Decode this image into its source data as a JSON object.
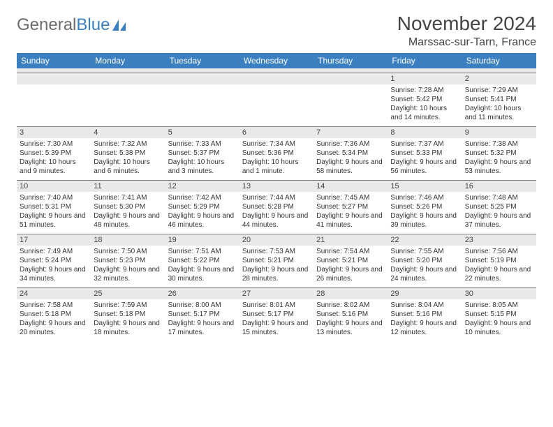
{
  "brand": {
    "part1": "General",
    "part2": "Blue"
  },
  "title": "November 2024",
  "location": "Marssac-sur-Tarn, France",
  "colors": {
    "header_bg": "#3a7fbf",
    "header_fg": "#ffffff",
    "num_bg": "#e9e9e9",
    "num_border": "#808080",
    "text": "#333333",
    "brand_gray": "#6b6b6b",
    "brand_blue": "#3a7fbf"
  },
  "fonts": {
    "title_pt": 28,
    "subtitle_pt": 16,
    "header_pt": 12,
    "daynum_pt": 11,
    "detail_pt": 10
  },
  "weekdays": [
    "Sunday",
    "Monday",
    "Tuesday",
    "Wednesday",
    "Thursday",
    "Friday",
    "Saturday"
  ],
  "weeks": [
    [
      null,
      null,
      null,
      null,
      null,
      {
        "n": "1",
        "sunrise": "7:28 AM",
        "sunset": "5:42 PM",
        "daylight": "10 hours and 14 minutes."
      },
      {
        "n": "2",
        "sunrise": "7:29 AM",
        "sunset": "5:41 PM",
        "daylight": "10 hours and 11 minutes."
      }
    ],
    [
      {
        "n": "3",
        "sunrise": "7:30 AM",
        "sunset": "5:39 PM",
        "daylight": "10 hours and 9 minutes."
      },
      {
        "n": "4",
        "sunrise": "7:32 AM",
        "sunset": "5:38 PM",
        "daylight": "10 hours and 6 minutes."
      },
      {
        "n": "5",
        "sunrise": "7:33 AM",
        "sunset": "5:37 PM",
        "daylight": "10 hours and 3 minutes."
      },
      {
        "n": "6",
        "sunrise": "7:34 AM",
        "sunset": "5:36 PM",
        "daylight": "10 hours and 1 minute."
      },
      {
        "n": "7",
        "sunrise": "7:36 AM",
        "sunset": "5:34 PM",
        "daylight": "9 hours and 58 minutes."
      },
      {
        "n": "8",
        "sunrise": "7:37 AM",
        "sunset": "5:33 PM",
        "daylight": "9 hours and 56 minutes."
      },
      {
        "n": "9",
        "sunrise": "7:38 AM",
        "sunset": "5:32 PM",
        "daylight": "9 hours and 53 minutes."
      }
    ],
    [
      {
        "n": "10",
        "sunrise": "7:40 AM",
        "sunset": "5:31 PM",
        "daylight": "9 hours and 51 minutes."
      },
      {
        "n": "11",
        "sunrise": "7:41 AM",
        "sunset": "5:30 PM",
        "daylight": "9 hours and 48 minutes."
      },
      {
        "n": "12",
        "sunrise": "7:42 AM",
        "sunset": "5:29 PM",
        "daylight": "9 hours and 46 minutes."
      },
      {
        "n": "13",
        "sunrise": "7:44 AM",
        "sunset": "5:28 PM",
        "daylight": "9 hours and 44 minutes."
      },
      {
        "n": "14",
        "sunrise": "7:45 AM",
        "sunset": "5:27 PM",
        "daylight": "9 hours and 41 minutes."
      },
      {
        "n": "15",
        "sunrise": "7:46 AM",
        "sunset": "5:26 PM",
        "daylight": "9 hours and 39 minutes."
      },
      {
        "n": "16",
        "sunrise": "7:48 AM",
        "sunset": "5:25 PM",
        "daylight": "9 hours and 37 minutes."
      }
    ],
    [
      {
        "n": "17",
        "sunrise": "7:49 AM",
        "sunset": "5:24 PM",
        "daylight": "9 hours and 34 minutes."
      },
      {
        "n": "18",
        "sunrise": "7:50 AM",
        "sunset": "5:23 PM",
        "daylight": "9 hours and 32 minutes."
      },
      {
        "n": "19",
        "sunrise": "7:51 AM",
        "sunset": "5:22 PM",
        "daylight": "9 hours and 30 minutes."
      },
      {
        "n": "20",
        "sunrise": "7:53 AM",
        "sunset": "5:21 PM",
        "daylight": "9 hours and 28 minutes."
      },
      {
        "n": "21",
        "sunrise": "7:54 AM",
        "sunset": "5:21 PM",
        "daylight": "9 hours and 26 minutes."
      },
      {
        "n": "22",
        "sunrise": "7:55 AM",
        "sunset": "5:20 PM",
        "daylight": "9 hours and 24 minutes."
      },
      {
        "n": "23",
        "sunrise": "7:56 AM",
        "sunset": "5:19 PM",
        "daylight": "9 hours and 22 minutes."
      }
    ],
    [
      {
        "n": "24",
        "sunrise": "7:58 AM",
        "sunset": "5:18 PM",
        "daylight": "9 hours and 20 minutes."
      },
      {
        "n": "25",
        "sunrise": "7:59 AM",
        "sunset": "5:18 PM",
        "daylight": "9 hours and 18 minutes."
      },
      {
        "n": "26",
        "sunrise": "8:00 AM",
        "sunset": "5:17 PM",
        "daylight": "9 hours and 17 minutes."
      },
      {
        "n": "27",
        "sunrise": "8:01 AM",
        "sunset": "5:17 PM",
        "daylight": "9 hours and 15 minutes."
      },
      {
        "n": "28",
        "sunrise": "8:02 AM",
        "sunset": "5:16 PM",
        "daylight": "9 hours and 13 minutes."
      },
      {
        "n": "29",
        "sunrise": "8:04 AM",
        "sunset": "5:16 PM",
        "daylight": "9 hours and 12 minutes."
      },
      {
        "n": "30",
        "sunrise": "8:05 AM",
        "sunset": "5:15 PM",
        "daylight": "9 hours and 10 minutes."
      }
    ]
  ],
  "labels": {
    "sunrise": "Sunrise:",
    "sunset": "Sunset:",
    "daylight": "Daylight:"
  }
}
